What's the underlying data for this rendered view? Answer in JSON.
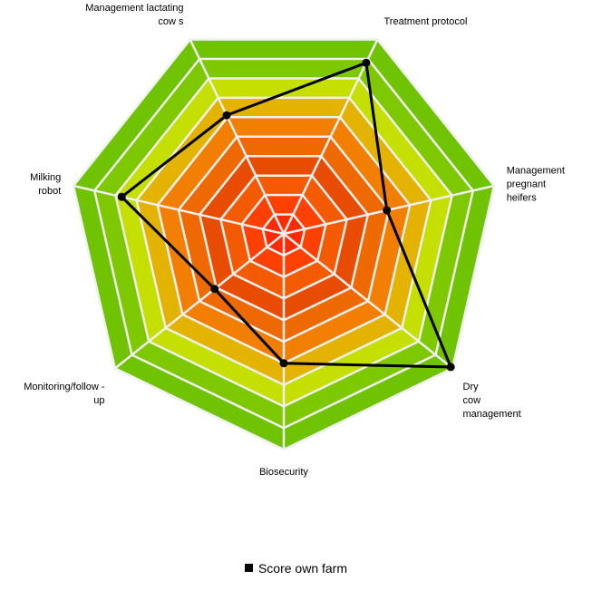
{
  "chart_data": {
    "type": "radar",
    "title": "",
    "axes": [
      "Management lactating cow s",
      "Treatment protocol",
      "Management pregnant heifers",
      "Dry cow management",
      "Biosecurity",
      "Monitoring/follow -up",
      "Milking robot"
    ],
    "axis_label_lines": [
      [
        "Management lactating",
        "cow s"
      ],
      [
        "Treatment protocol"
      ],
      [
        "Management",
        "pregnant",
        "heifers"
      ],
      [
        "Dry",
        "cow",
        "management"
      ],
      [
        "Biosecurity"
      ],
      [
        "Monitoring/follow -",
        "up"
      ],
      [
        "Milking",
        "robot"
      ]
    ],
    "range": [
      0,
      10
    ],
    "rings": 10,
    "ring_colors": [
      "#ff2a00",
      "#ff4000",
      "#f45a00",
      "#e84c00",
      "#ee6a00",
      "#f27f00",
      "#e4b300",
      "#c5e000",
      "#7ec800",
      "#6fc300"
    ],
    "grid_color": "#f0f0f0",
    "series": [
      {
        "name": "Score own farm",
        "color": "#000000",
        "values": [
          6.1,
          8.8,
          4.9,
          9.9,
          6.0,
          4.1,
          7.7
        ]
      }
    ],
    "legend_position": "bottom"
  }
}
